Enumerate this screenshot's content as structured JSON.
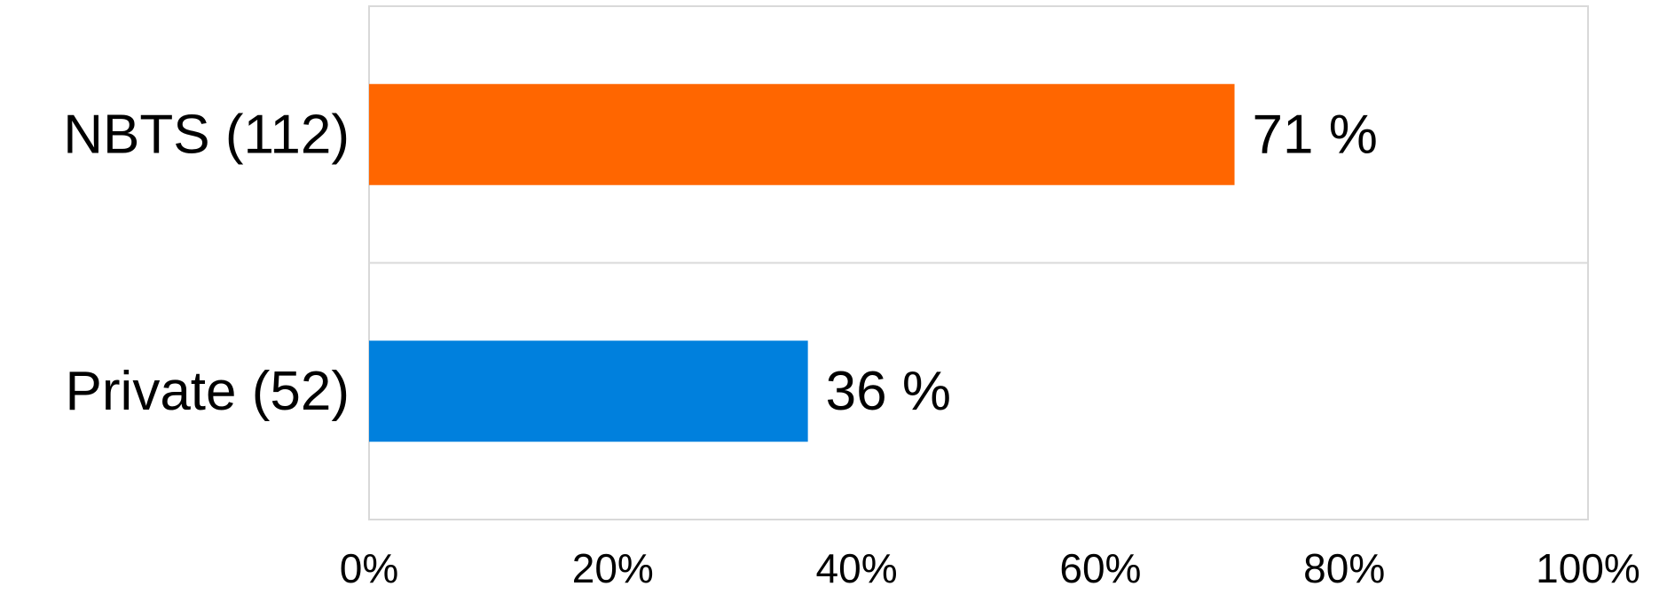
{
  "chart_data": {
    "type": "bar",
    "orientation": "horizontal",
    "categories": [
      "NBTS (112)",
      "Private (52)"
    ],
    "values": [
      71,
      36
    ],
    "data_labels": [
      "71 %",
      "36 %"
    ],
    "colors": [
      "#FF6600",
      "#0080DD"
    ],
    "xlim": [
      0,
      100
    ],
    "x_ticks": [
      "0%",
      "20%",
      "40%",
      "60%",
      "80%",
      "100%"
    ],
    "grid": false,
    "legend": "none"
  }
}
